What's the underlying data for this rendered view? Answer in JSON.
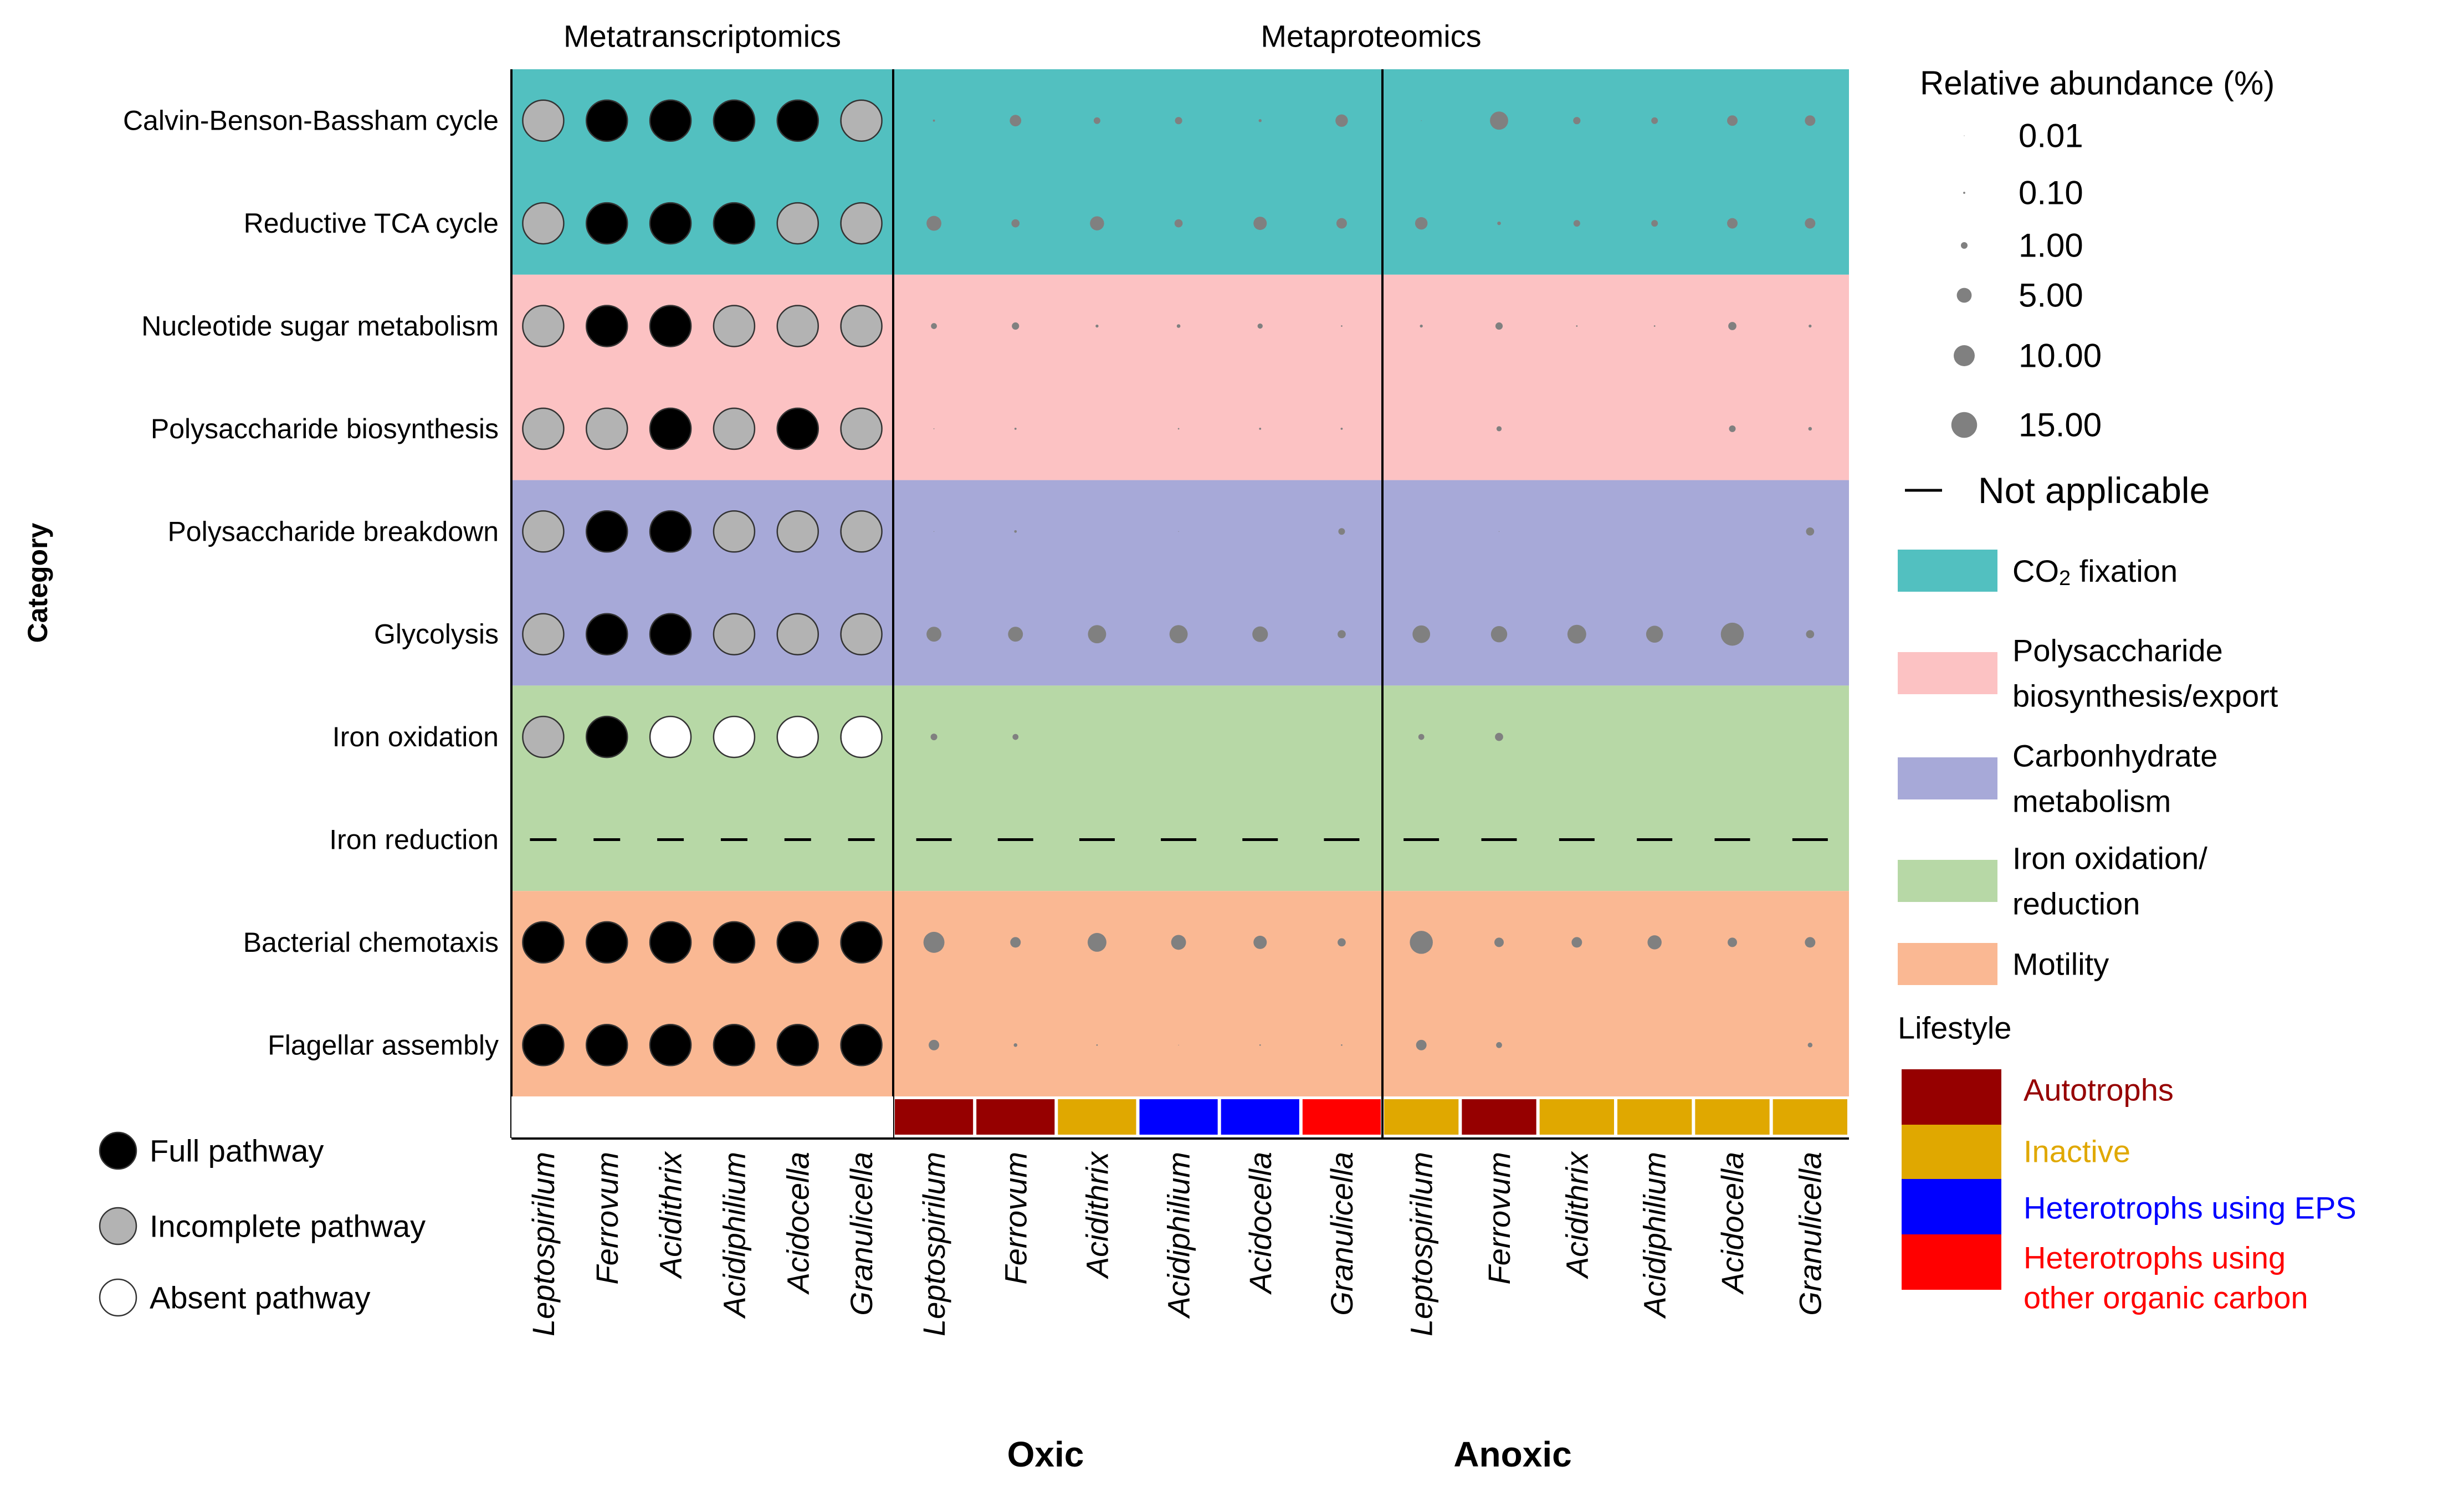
{
  "chart_data": {
    "type": "scatter",
    "subtype": "bubble-matrix",
    "section_titles": {
      "transcriptomics": "Metatranscriptomics",
      "proteomics": "Metaproteomics"
    },
    "y_axis_label": "Category",
    "group_labels": {
      "oxic": "Oxic",
      "anoxic": "Anoxic"
    },
    "genera": [
      "Leptospirilum",
      "Ferrovum",
      "Acidithrix",
      "Acidiphilium",
      "Acidocella",
      "Granulicella"
    ],
    "categories": [
      "Calvin-Benson-Bassham cycle",
      "Reductive TCA cycle",
      "Nucleotide sugar metabolism",
      "Polysaccharide biosynthesis",
      "Polysaccharide breakdown",
      "Glycolysis",
      "Iron oxidation",
      "Iron reduction",
      "Bacterial chemotaxis",
      "Flagellar assembly"
    ],
    "category_groups": [
      {
        "label": "CO2 fixation",
        "label_main": "CO",
        "label_sub": "2",
        "label_rest": " fixation",
        "color": "#52c0c0",
        "rows": [
          0,
          1
        ]
      },
      {
        "label": "Polysaccharide biosynthesis/export",
        "label_lines": [
          "Polysaccharide",
          "biosynthesis/export"
        ],
        "color": "#fcc2c3",
        "rows": [
          2,
          3
        ]
      },
      {
        "label": "Carbonhydrate metabolism",
        "label_lines": [
          "Carbonhydrate",
          "metabolism"
        ],
        "color": "#a7a9d8",
        "rows": [
          4,
          5
        ]
      },
      {
        "label": "Iron oxidation/ reduction",
        "label_lines": [
          "Iron oxidation/",
          "reduction"
        ],
        "color": "#b7d8a6",
        "rows": [
          6,
          7
        ]
      },
      {
        "label": "Motility",
        "label_lines": [
          "Motility"
        ],
        "color": "#fab893",
        "rows": [
          8,
          9
        ]
      }
    ],
    "transcriptomics": [
      [
        "incomplete",
        "full",
        "full",
        "full",
        "full",
        "incomplete"
      ],
      [
        "incomplete",
        "full",
        "full",
        "full",
        "incomplete",
        "incomplete"
      ],
      [
        "incomplete",
        "full",
        "full",
        "incomplete",
        "incomplete",
        "incomplete"
      ],
      [
        "incomplete",
        "incomplete",
        "full",
        "incomplete",
        "full",
        "incomplete"
      ],
      [
        "incomplete",
        "full",
        "full",
        "incomplete",
        "incomplete",
        "incomplete"
      ],
      [
        "incomplete",
        "full",
        "full",
        "incomplete",
        "incomplete",
        "incomplete"
      ],
      [
        "incomplete",
        "full",
        "absent",
        "absent",
        "absent",
        "absent"
      ],
      [
        "na",
        "na",
        "na",
        "na",
        "na",
        "na"
      ],
      [
        "full",
        "full",
        "full",
        "full",
        "full",
        "full"
      ],
      [
        "full",
        "full",
        "full",
        "full",
        "full",
        "full"
      ]
    ],
    "proteomics_oxic": [
      [
        0.1,
        3.0,
        1.0,
        1.2,
        0.2,
        3.5
      ],
      [
        5.0,
        1.5,
        4.5,
        1.5,
        4.0,
        2.5
      ],
      [
        0.8,
        1.2,
        0.2,
        0.3,
        0.6,
        0.05
      ],
      [
        0.02,
        0.1,
        null,
        0.05,
        0.1,
        0.1
      ],
      [
        0.01,
        0.15,
        null,
        0.01,
        null,
        1.0
      ],
      [
        5.0,
        5.0,
        7.5,
        7.5,
        5.5,
        1.5
      ],
      [
        1.0,
        0.8,
        null,
        null,
        null,
        null
      ],
      [
        "na",
        "na",
        "na",
        "na",
        "na",
        "na"
      ],
      [
        10.0,
        2.5,
        8.0,
        5.0,
        4.0,
        1.5
      ],
      [
        2.5,
        0.3,
        0.05,
        0.01,
        0.05,
        0.05
      ]
    ],
    "proteomics_anoxic": [
      [
        0.01,
        7.5,
        1.2,
        1.0,
        2.5,
        2.5
      ],
      [
        3.5,
        0.3,
        1.0,
        1.0,
        2.5,
        2.5
      ],
      [
        0.2,
        1.2,
        0.05,
        0.05,
        1.5,
        0.2
      ],
      [
        null,
        0.6,
        null,
        null,
        1.0,
        0.3
      ],
      [
        null,
        0.01,
        null,
        null,
        null,
        1.5
      ],
      [
        7.0,
        6.0,
        8.0,
        6.5,
        12.0,
        1.5
      ],
      [
        0.8,
        1.5,
        null,
        null,
        null,
        null
      ],
      [
        "na",
        "na",
        "na",
        "na",
        "na",
        "na"
      ],
      [
        12.0,
        2.0,
        2.5,
        4.5,
        2.0,
        2.5
      ],
      [
        2.5,
        0.8,
        null,
        null,
        null,
        0.5
      ]
    ],
    "size_legend": {
      "title": "Relative abundance (%)",
      "values": [
        0.01,
        0.1,
        1.0,
        5.0,
        10.0,
        15.0
      ],
      "labels": [
        "0.01",
        "0.10",
        "1.00",
        "5.00",
        "10.00",
        "15.00"
      ],
      "not_applicable": "Not applicable"
    },
    "pathway_legend": [
      {
        "key": "full",
        "label": "Full pathway",
        "color": "#000000"
      },
      {
        "key": "incomplete",
        "label": "Incomplete pathway",
        "color": "#b3b3b3"
      },
      {
        "key": "absent",
        "label": "Absent pathway",
        "color": "#ffffff"
      }
    ],
    "lifestyle_legend": {
      "title": "Lifestyle",
      "items": [
        {
          "key": "autotrophs",
          "label_lines": [
            "Autotrophs"
          ],
          "color": "#960000"
        },
        {
          "key": "inactive",
          "label_lines": [
            "Inactive"
          ],
          "color": "#e0a800"
        },
        {
          "key": "eps",
          "label_lines": [
            "Heterotrophs using EPS"
          ],
          "color": "#0000ff"
        },
        {
          "key": "other",
          "label_lines": [
            "Heterotrophs using",
            "other organic carbon"
          ],
          "color": "#ff0000"
        }
      ]
    },
    "lifestyle_oxic": [
      "autotrophs",
      "autotrophs",
      "inactive",
      "eps",
      "eps",
      "other"
    ],
    "lifestyle_anoxic": [
      "inactive",
      "autotrophs",
      "inactive",
      "inactive",
      "inactive",
      "inactive"
    ],
    "bubble_color": "#808080"
  }
}
